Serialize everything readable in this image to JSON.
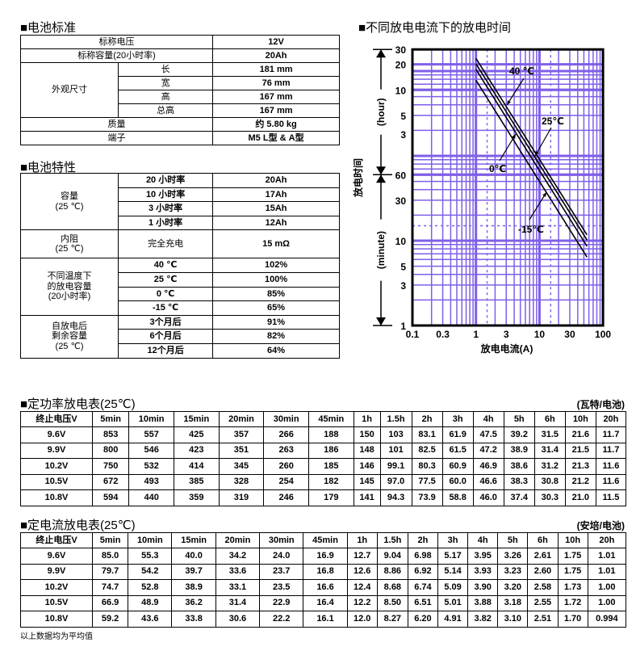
{
  "spec": {
    "title": "■电池标准",
    "rows": [
      {
        "label": "标称电压",
        "value": "12V"
      },
      {
        "label": "标称容量(20小时率)",
        "value": "20Ah"
      },
      {
        "group": "外观尺寸",
        "items": [
          {
            "label": "长",
            "value": "181 mm"
          },
          {
            "label": "宽",
            "value": "76 mm"
          },
          {
            "label": "高",
            "value": "167 mm"
          },
          {
            "label": "总高",
            "value": "167 mm"
          }
        ]
      },
      {
        "label": "质量",
        "value": "约 5.80 kg"
      },
      {
        "label": "端子",
        "value": "M5 L型 & A型"
      }
    ]
  },
  "characteristics": {
    "title": "■电池特性",
    "groups": [
      {
        "label": "容量\n(25 ℃)",
        "items": [
          {
            "label": "20 小时率",
            "value": "20Ah"
          },
          {
            "label": "10 小时率",
            "value": "17Ah"
          },
          {
            "label": "3 小时率",
            "value": "15Ah"
          },
          {
            "label": "1 小时率",
            "value": "12Ah"
          }
        ]
      },
      {
        "label": "内阻\n(25 ℃)",
        "tall": true,
        "items": [
          {
            "label": "完全充电",
            "value": "15 mΩ"
          }
        ]
      },
      {
        "label": "不同温度下\n的放电容量\n(20小时率)",
        "items": [
          {
            "label": "40 ℃",
            "value": "102%"
          },
          {
            "label": "25 ℃",
            "value": "100%"
          },
          {
            "label": "0 ℃",
            "value": "85%"
          },
          {
            "label": "-15  ℃",
            "value": "65%"
          }
        ]
      },
      {
        "label": "自放电后\n剩余容量\n(25 ℃)",
        "items": [
          {
            "label": "3个月后",
            "value": "91%"
          },
          {
            "label": "6个月后",
            "value": "82%"
          },
          {
            "label": "12个月后",
            "value": "64%"
          }
        ]
      }
    ]
  },
  "chart_data": {
    "type": "line",
    "title": "■不同放电电流下的放电时间",
    "xlabel": "放电电流(A)",
    "ylabel": "放电时间",
    "ylabel_hour": "(hour)",
    "ylabel_minute": "(minute)",
    "x_scale": "log",
    "y_scale": "log",
    "xlim": [
      0.1,
      100
    ],
    "ylim_minutes": [
      1,
      1800
    ],
    "x_ticks": [
      "0.1",
      "0.3",
      "1",
      "3",
      "10",
      "30",
      "100"
    ],
    "x_tick_values": [
      0.1,
      0.3,
      1,
      3,
      10,
      30,
      100
    ],
    "y_ticks_hour": [
      "30",
      "20",
      "10",
      "5",
      "3"
    ],
    "y_ticks_hour_values": [
      30,
      20,
      10,
      5,
      3
    ],
    "y_ticks_minute": [
      "60",
      "30",
      "10",
      "5",
      "3",
      "1"
    ],
    "y_ticks_minute_values": [
      60,
      30,
      10,
      5,
      3,
      1
    ],
    "grid": true,
    "grid_color": "#7f5fe8",
    "series": [
      {
        "name": "40 ℃",
        "x": [
          1.0,
          56
        ],
        "y_minutes": [
          1410,
          11.7
        ]
      },
      {
        "name": "25℃",
        "x": [
          1.0,
          56
        ],
        "y_minutes": [
          1220,
          10.2
        ]
      },
      {
        "name": "0℃",
        "x": [
          1.0,
          56
        ],
        "y_minutes": [
          1050,
          8.6
        ]
      },
      {
        "name": "-15℃",
        "x": [
          1.0,
          56
        ],
        "y_minutes": [
          780,
          6.4
        ]
      }
    ]
  },
  "power_table": {
    "title": "■定功率放电表(25℃)",
    "unit": "(瓦特/电池)",
    "headers": [
      "终止电压V",
      "5min",
      "10min",
      "15min",
      "20min",
      "30min",
      "45min",
      "1h",
      "1.5h",
      "2h",
      "3h",
      "4h",
      "5h",
      "6h",
      "10h",
      "20h"
    ],
    "rows": [
      [
        "9.6V",
        "853",
        "557",
        "425",
        "357",
        "266",
        "188",
        "150",
        "103",
        "83.1",
        "61.9",
        "47.5",
        "39.2",
        "31.5",
        "21.6",
        "11.7"
      ],
      [
        "9.9V",
        "800",
        "546",
        "423",
        "351",
        "263",
        "186",
        "148",
        "101",
        "82.5",
        "61.5",
        "47.2",
        "38.9",
        "31.4",
        "21.5",
        "11.7"
      ],
      [
        "10.2V",
        "750",
        "532",
        "414",
        "345",
        "260",
        "185",
        "146",
        "99.1",
        "80.3",
        "60.9",
        "46.9",
        "38.6",
        "31.2",
        "21.3",
        "11.6"
      ],
      [
        "10.5V",
        "672",
        "493",
        "385",
        "328",
        "254",
        "182",
        "145",
        "97.0",
        "77.5",
        "60.0",
        "46.6",
        "38.3",
        "30.8",
        "21.2",
        "11.6"
      ],
      [
        "10.8V",
        "594",
        "440",
        "359",
        "319",
        "246",
        "179",
        "141",
        "94.3",
        "73.9",
        "58.8",
        "46.0",
        "37.4",
        "30.3",
        "21.0",
        "11.5"
      ]
    ]
  },
  "current_table": {
    "title": "■定电流放电表(25℃)",
    "unit": "(安培/电池)",
    "headers": [
      "终止电压V",
      "5min",
      "10min",
      "15min",
      "20min",
      "30min",
      "45min",
      "1h",
      "1.5h",
      "2h",
      "3h",
      "4h",
      "5h",
      "6h",
      "10h",
      "20h"
    ],
    "rows": [
      [
        "9.6V",
        "85.0",
        "55.3",
        "40.0",
        "34.2",
        "24.0",
        "16.9",
        "12.7",
        "9.04",
        "6.98",
        "5.17",
        "3.95",
        "3.26",
        "2.61",
        "1.75",
        "1.01"
      ],
      [
        "9.9V",
        "79.7",
        "54.2",
        "39.7",
        "33.6",
        "23.7",
        "16.8",
        "12.6",
        "8.86",
        "6.92",
        "5.14",
        "3.93",
        "3.23",
        "2.60",
        "1.75",
        "1.01"
      ],
      [
        "10.2V",
        "74.7",
        "52.8",
        "38.9",
        "33.1",
        "23.5",
        "16.6",
        "12.4",
        "8.68",
        "6.74",
        "5.09",
        "3.90",
        "3.20",
        "2.58",
        "1.73",
        "1.00"
      ],
      [
        "10.5V",
        "66.9",
        "48.9",
        "36.2",
        "31.4",
        "22.9",
        "16.4",
        "12.2",
        "8.50",
        "6.51",
        "5.01",
        "3.88",
        "3.18",
        "2.55",
        "1.72",
        "1.00"
      ],
      [
        "10.8V",
        "59.2",
        "43.6",
        "33.8",
        "30.6",
        "22.2",
        "16.1",
        "12.0",
        "8.27",
        "6.20",
        "4.91",
        "3.82",
        "3.10",
        "2.51",
        "1.70",
        "0.994"
      ]
    ],
    "footnote": "以上数据均为平均值"
  }
}
